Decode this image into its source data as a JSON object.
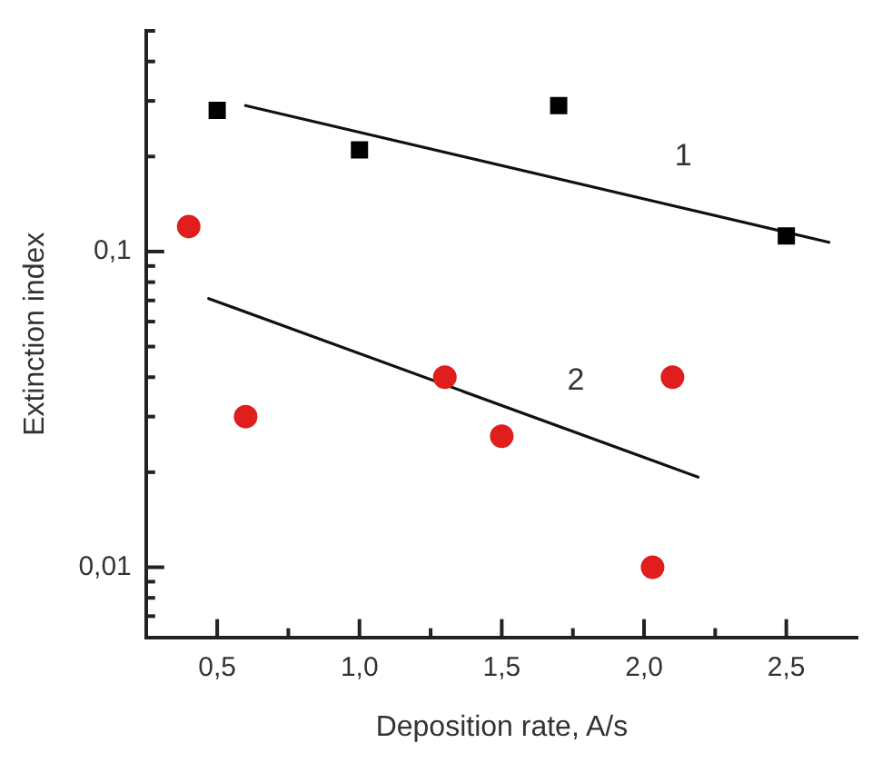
{
  "chart_data": {
    "type": "scatter",
    "xlabel": "Deposition rate, A/s",
    "ylabel": "Extinction index",
    "log": "y",
    "grid": false,
    "legend": false,
    "xlim": [
      0.25,
      2.75
    ],
    "ylim": [
      0.006,
      0.5
    ],
    "xticks": [
      {
        "value": 0.5,
        "label": "0,5"
      },
      {
        "value": 0.75,
        "label": null
      },
      {
        "value": 1.0,
        "label": "1,0"
      },
      {
        "value": 1.25,
        "label": null
      },
      {
        "value": 1.5,
        "label": "1,5"
      },
      {
        "value": 1.75,
        "label": null
      },
      {
        "value": 2.0,
        "label": "2,0"
      },
      {
        "value": 2.25,
        "label": null
      },
      {
        "value": 2.5,
        "label": "2,5"
      }
    ],
    "yticks": [
      {
        "value": 0.007,
        "label": null
      },
      {
        "value": 0.008,
        "label": null
      },
      {
        "value": 0.009,
        "label": null
      },
      {
        "value": 0.01,
        "label": "0,01"
      },
      {
        "value": 0.02,
        "label": null
      },
      {
        "value": 0.03,
        "label": null
      },
      {
        "value": 0.04,
        "label": null
      },
      {
        "value": 0.05,
        "label": null
      },
      {
        "value": 0.06,
        "label": null
      },
      {
        "value": 0.07,
        "label": null
      },
      {
        "value": 0.08,
        "label": null
      },
      {
        "value": 0.09,
        "label": null
      },
      {
        "value": 0.1,
        "label": "0,1"
      },
      {
        "value": 0.2,
        "label": null
      },
      {
        "value": 0.3,
        "label": null
      },
      {
        "value": 0.4,
        "label": null
      },
      {
        "value": 0.5,
        "label": null
      }
    ],
    "series": [
      {
        "type": "scatter",
        "marker": "square",
        "color": "#000000",
        "x": [
          0.5,
          1.0,
          1.7,
          2.5
        ],
        "values": [
          0.28,
          0.21,
          0.29,
          0.112
        ]
      },
      {
        "type": "scatter",
        "marker": "circle",
        "color": "#e01e1e",
        "x": [
          0.4,
          0.6,
          1.3,
          1.5,
          2.03,
          2.1
        ],
        "values": [
          0.12,
          0.03,
          0.04,
          0.026,
          0.01,
          0.04
        ]
      },
      {
        "type": "line",
        "name": "1",
        "marker": "none",
        "color": "#111111",
        "x": [
          0.6,
          2.65
        ],
        "values": [
          0.29,
          0.107
        ]
      },
      {
        "type": "line",
        "name": "2",
        "marker": "none",
        "color": "#111111",
        "x": [
          0.47,
          2.19
        ],
        "values": [
          0.071,
          0.0193
        ]
      }
    ]
  }
}
